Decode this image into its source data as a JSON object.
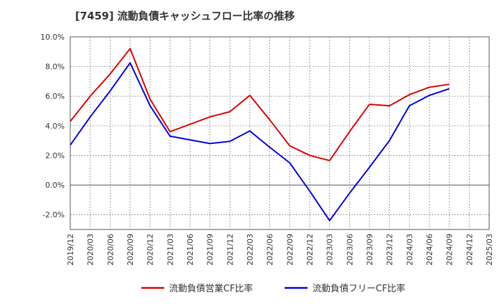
{
  "chart_data": {
    "type": "line",
    "title": "[7459]  流動負債キャッシュフロー比率の推移",
    "x": [
      "2019/12",
      "2020/03",
      "2020/06",
      "2020/09",
      "2020/12",
      "2021/03",
      "2021/06",
      "2021/09",
      "2021/12",
      "2022/03",
      "2022/06",
      "2022/09",
      "2022/12",
      "2023/03",
      "2023/06",
      "2023/09",
      "2023/12",
      "2024/03",
      "2024/06",
      "2024/09",
      "2024/12",
      "2025/03"
    ],
    "yticks": [
      "10.0%",
      "8.0%",
      "6.0%",
      "4.0%",
      "2.0%",
      "0.0%",
      "-2.0%"
    ],
    "ytick_values": [
      10,
      8,
      6,
      4,
      2,
      0,
      -2
    ],
    "ylim": [
      -3,
      10
    ],
    "grid": true,
    "legend_position": "bottom",
    "series": [
      {
        "name": "流動負債営業CF比率",
        "color": "#dd0000",
        "values": [
          4.3,
          6.0,
          7.5,
          9.2,
          5.8,
          3.6,
          4.1,
          4.6,
          4.95,
          6.05,
          4.4,
          2.65,
          2.0,
          1.65,
          3.6,
          5.45,
          5.35,
          6.1,
          6.6,
          6.8,
          null,
          null
        ]
      },
      {
        "name": "流動負債フリーCF比率",
        "color": "#0000dd",
        "values": [
          2.7,
          4.6,
          6.35,
          8.25,
          5.35,
          3.3,
          3.05,
          2.8,
          2.95,
          3.65,
          2.55,
          1.5,
          -0.4,
          -2.4,
          -0.55,
          1.2,
          3.0,
          5.35,
          6.05,
          6.5,
          null,
          null
        ]
      }
    ]
  }
}
